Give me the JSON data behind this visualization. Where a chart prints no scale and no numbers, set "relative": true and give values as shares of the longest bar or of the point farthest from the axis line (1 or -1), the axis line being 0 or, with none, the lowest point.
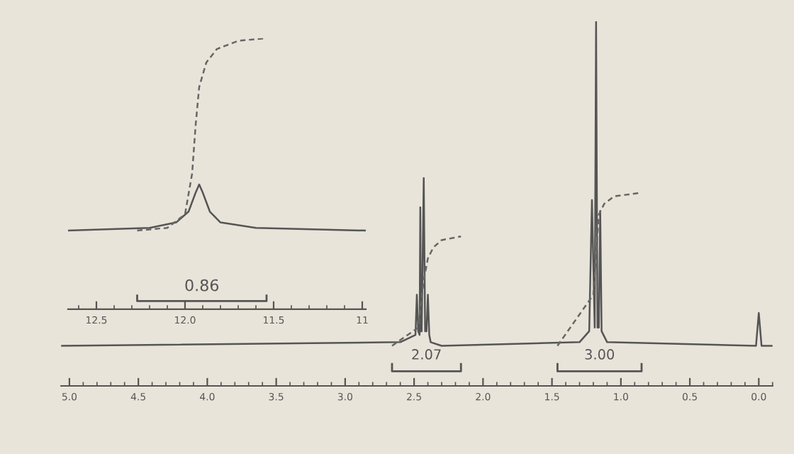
{
  "chart_data": [
    {
      "type": "line",
      "relative": true,
      "xlim": [
        12.66,
        10.98
      ],
      "xticks": [
        {
          "value": 12.5,
          "label": "12.5"
        },
        {
          "value": 12.0,
          "label": "12.0"
        },
        {
          "value": 11.5,
          "label": "11.5"
        },
        11
      ],
      "annotations": [
        "0.86"
      ],
      "series": [
        {
          "color": "#555555",
          "line_style": "solid",
          "x": [
            12.66,
            12.2,
            12.05,
            11.98,
            11.94,
            11.92,
            11.9,
            11.86,
            11.8,
            11.6,
            10.98
          ],
          "values": [
            0.29,
            0.3,
            0.32,
            0.36,
            0.43,
            0.46,
            0.43,
            0.36,
            0.32,
            0.3,
            0.29
          ]
        },
        {
          "color": "#666666",
          "line_style": "dashed",
          "x": [
            12.27,
            12.1,
            12.0,
            11.96,
            11.94,
            11.92,
            11.88,
            11.82,
            11.7,
            11.54
          ],
          "values": [
            0.29,
            0.3,
            0.35,
            0.5,
            0.68,
            0.82,
            0.91,
            0.96,
            0.99,
            1.0
          ]
        }
      ]
    },
    {
      "type": "line",
      "relative": true,
      "xlim": [
        5.06,
        -0.1
      ],
      "xticks": [
        {
          "value": 5.0,
          "label": "5.0"
        },
        4.5,
        {
          "value": 4.0,
          "label": "4.0"
        },
        3.5,
        {
          "value": 3.0,
          "label": "3.0"
        },
        2.5,
        {
          "value": 2.0,
          "label": "2.0"
        },
        1.5,
        {
          "value": 1.0,
          "label": "1.0"
        },
        0.5,
        {
          "value": 0.0,
          "label": "0.0"
        }
      ],
      "annotations": [
        "2.07",
        "3.00"
      ],
      "series": [
        {
          "color": "#555555",
          "line_style": "solid",
          "x": [
            5.06,
            2.6,
            2.49,
            2.48,
            2.47,
            2.46,
            2.455,
            2.45,
            2.445,
            2.43,
            2.42,
            2.41,
            2.4,
            2.39,
            2.38,
            2.3,
            1.3,
            1.23,
            1.21,
            1.19,
            1.18,
            1.17,
            1.16,
            1.15,
            1.14,
            1.1,
            0.02,
            0.0,
            -0.02,
            -0.1
          ],
          "values": [
            0.11,
            0.12,
            0.14,
            0.25,
            0.15,
            0.14,
            0.49,
            0.15,
            0.15,
            0.57,
            0.15,
            0.15,
            0.25,
            0.14,
            0.12,
            0.11,
            0.12,
            0.15,
            0.51,
            0.16,
            1.0,
            0.16,
            0.16,
            0.48,
            0.15,
            0.12,
            0.11,
            0.2,
            0.11,
            0.11
          ]
        },
        {
          "color": "#666666",
          "line_style": "dashed",
          "x": [
            2.66,
            2.47,
            2.43,
            2.4,
            2.36,
            2.3,
            2.16
          ],
          "values": [
            0.11,
            0.16,
            0.29,
            0.35,
            0.38,
            0.4,
            0.41
          ]
        },
        {
          "color": "#666666",
          "line_style": "dashed",
          "x": [
            1.46,
            1.2,
            1.16,
            1.12,
            1.05,
            0.85
          ],
          "values": [
            0.11,
            0.25,
            0.47,
            0.5,
            0.52,
            0.53
          ]
        }
      ]
    }
  ]
}
